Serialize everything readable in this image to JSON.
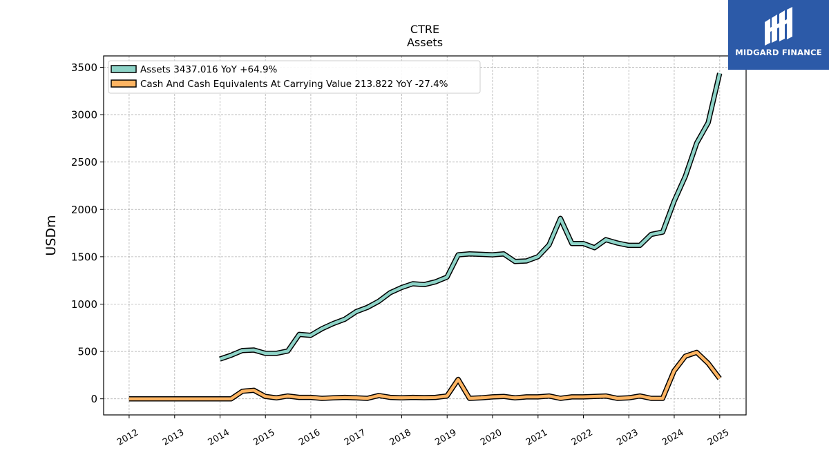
{
  "brand": {
    "name": "MIDGARD FINANCE",
    "color": "#2c5aa8",
    "icon": "midgard-logo-icon"
  },
  "chart_data": {
    "type": "line",
    "title": "CTRE",
    "subtitle": "Assets",
    "ylabel": "USDm",
    "xlabel": "",
    "ylim": [
      -170,
      3620
    ],
    "xlim": [
      "2011-06-10",
      "2025-08-01"
    ],
    "yticks": [
      0,
      500,
      1000,
      1500,
      2000,
      2500,
      3000,
      3500
    ],
    "xticks": [
      "2012",
      "2013",
      "2014",
      "2015",
      "2016",
      "2017",
      "2018",
      "2019",
      "2020",
      "2021",
      "2022",
      "2023",
      "2024",
      "2025"
    ],
    "grid": true,
    "legend_position": "top-left",
    "series": [
      {
        "name": "Assets",
        "legend_label": "Assets  3437.016 YoY +64.9%",
        "color": "#8dd3c7",
        "points": [
          [
            "2013-12-31",
            420
          ],
          [
            "2014-03-31",
            460
          ],
          [
            "2014-06-30",
            510
          ],
          [
            "2014-09-30",
            515
          ],
          [
            "2014-12-31",
            480
          ],
          [
            "2015-03-31",
            480
          ],
          [
            "2015-06-30",
            505
          ],
          [
            "2015-09-30",
            680
          ],
          [
            "2015-12-31",
            670
          ],
          [
            "2016-03-31",
            740
          ],
          [
            "2016-06-30",
            795
          ],
          [
            "2016-09-30",
            840
          ],
          [
            "2016-12-31",
            920
          ],
          [
            "2017-03-31",
            965
          ],
          [
            "2017-06-30",
            1030
          ],
          [
            "2017-09-30",
            1120
          ],
          [
            "2017-12-31",
            1175
          ],
          [
            "2018-03-31",
            1215
          ],
          [
            "2018-06-30",
            1205
          ],
          [
            "2018-09-30",
            1235
          ],
          [
            "2018-12-31",
            1285
          ],
          [
            "2019-03-31",
            1520
          ],
          [
            "2019-06-30",
            1530
          ],
          [
            "2019-09-30",
            1525
          ],
          [
            "2019-12-31",
            1520
          ],
          [
            "2020-03-31",
            1530
          ],
          [
            "2020-06-30",
            1450
          ],
          [
            "2020-09-30",
            1455
          ],
          [
            "2020-12-31",
            1500
          ],
          [
            "2021-03-31",
            1625
          ],
          [
            "2021-06-30",
            1905
          ],
          [
            "2021-09-30",
            1640
          ],
          [
            "2021-12-31",
            1640
          ],
          [
            "2022-03-31",
            1595
          ],
          [
            "2022-06-30",
            1680
          ],
          [
            "2022-09-30",
            1645
          ],
          [
            "2022-12-31",
            1620
          ],
          [
            "2023-03-31",
            1620
          ],
          [
            "2023-06-30",
            1735
          ],
          [
            "2023-09-30",
            1760
          ],
          [
            "2023-12-31",
            2085
          ],
          [
            "2024-03-31",
            2350
          ],
          [
            "2024-06-30",
            2700
          ],
          [
            "2024-09-30",
            2915
          ],
          [
            "2024-12-31",
            3437.016
          ]
        ]
      },
      {
        "name": "Cash And Cash Equivalents At Carrying Value",
        "legend_label": "Cash And Cash Equivalents At Carrying Value  213.822 YoY -27.4%",
        "color": "#fdb462",
        "points": [
          [
            "2011-12-31",
            0
          ],
          [
            "2012-03-31",
            0
          ],
          [
            "2012-06-30",
            0
          ],
          [
            "2012-09-30",
            0
          ],
          [
            "2012-12-31",
            0
          ],
          [
            "2013-03-31",
            0
          ],
          [
            "2013-06-30",
            0
          ],
          [
            "2013-09-30",
            0
          ],
          [
            "2013-12-31",
            0
          ],
          [
            "2014-03-31",
            0
          ],
          [
            "2014-06-30",
            80
          ],
          [
            "2014-09-30",
            90
          ],
          [
            "2014-12-31",
            25
          ],
          [
            "2015-03-31",
            10
          ],
          [
            "2015-06-30",
            30
          ],
          [
            "2015-09-30",
            15
          ],
          [
            "2015-12-31",
            15
          ],
          [
            "2016-03-31",
            5
          ],
          [
            "2016-06-30",
            10
          ],
          [
            "2016-09-30",
            15
          ],
          [
            "2016-12-31",
            10
          ],
          [
            "2017-03-31",
            5
          ],
          [
            "2017-06-30",
            35
          ],
          [
            "2017-09-30",
            15
          ],
          [
            "2017-12-31",
            10
          ],
          [
            "2018-03-31",
            15
          ],
          [
            "2018-06-30",
            12
          ],
          [
            "2018-09-30",
            15
          ],
          [
            "2018-12-31",
            30
          ],
          [
            "2019-03-31",
            205
          ],
          [
            "2019-06-30",
            5
          ],
          [
            "2019-09-30",
            10
          ],
          [
            "2019-12-31",
            20
          ],
          [
            "2020-03-31",
            25
          ],
          [
            "2020-06-30",
            10
          ],
          [
            "2020-09-30",
            20
          ],
          [
            "2020-12-31",
            20
          ],
          [
            "2021-03-31",
            30
          ],
          [
            "2021-06-30",
            5
          ],
          [
            "2021-09-30",
            20
          ],
          [
            "2021-12-31",
            20
          ],
          [
            "2022-03-31",
            25
          ],
          [
            "2022-06-30",
            30
          ],
          [
            "2022-09-30",
            5
          ],
          [
            "2022-12-31",
            10
          ],
          [
            "2023-03-31",
            30
          ],
          [
            "2023-06-30",
            5
          ],
          [
            "2023-09-30",
            5
          ],
          [
            "2023-12-31",
            295
          ],
          [
            "2024-03-31",
            450
          ],
          [
            "2024-06-30",
            490
          ],
          [
            "2024-09-30",
            375
          ],
          [
            "2024-12-31",
            213.822
          ]
        ]
      }
    ]
  }
}
